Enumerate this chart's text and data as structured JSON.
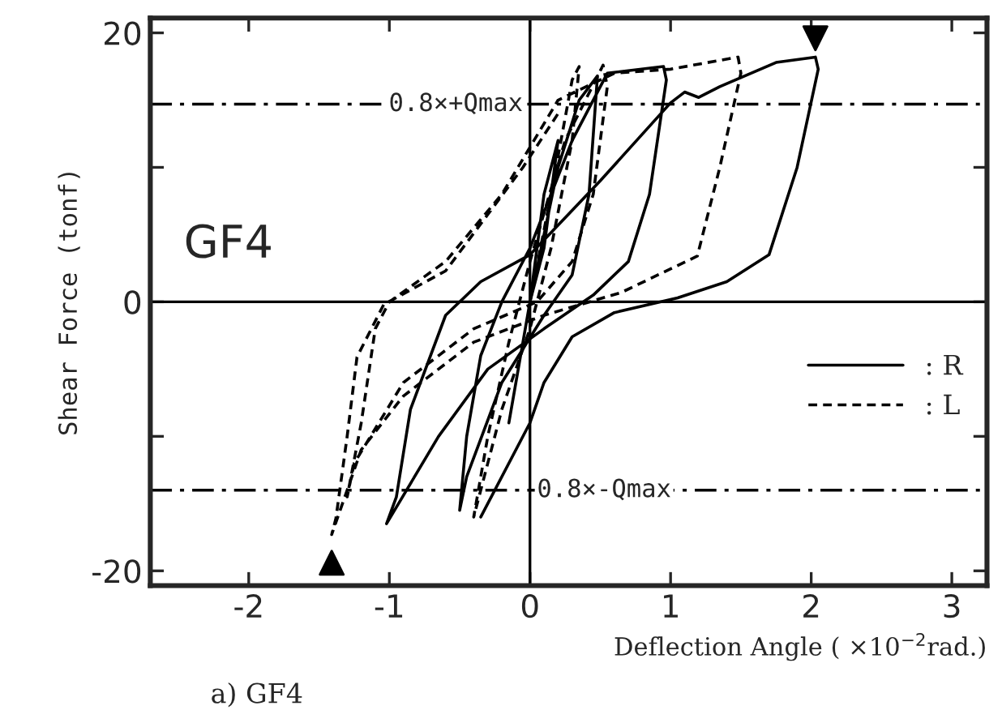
{
  "chart_data": {
    "type": "line",
    "xlabel": "Deflection Angle ( ×10$^{−2}$rad.)",
    "ylabel": "Shear Force (tonf)",
    "xlim": [
      -2.7,
      3.25
    ],
    "ylim": [
      -21.1,
      21.1
    ],
    "xticks": [
      -2,
      -1,
      0,
      1,
      2,
      3
    ],
    "yticks": [
      -20,
      {
        "value": -10,
        "label": null
      },
      0,
      {
        "value": 10,
        "label": null
      },
      20
    ],
    "grid": false,
    "legend": "right",
    "series": [
      {
        "name": ": R",
        "color": "#000000",
        "line_style": "solid",
        "x": [
          0,
          0.1,
          0.2,
          0.1,
          0,
          -0.1,
          -0.15,
          -0.05,
          0,
          0.2,
          0.35,
          0.48,
          0.42,
          0.3,
          0.1,
          -0.2,
          -0.45,
          -0.5,
          -0.45,
          -0.35,
          -0.2,
          0,
          0.3,
          0.55,
          0.95,
          0.97,
          0.85,
          0.7,
          0.45,
          0.1,
          -0.3,
          -0.65,
          -1.02,
          -0.95,
          -0.85,
          -0.6,
          -0.35,
          0,
          0.5,
          1.0,
          1.1,
          1.2,
          1.35,
          1.75,
          2.03,
          2.05,
          1.9,
          1.7,
          1.4,
          1.05,
          0.6,
          0.3,
          0.1,
          0,
          -0.35
        ],
        "values": [
          0,
          8,
          12,
          4,
          0,
          -6,
          -9,
          -3,
          0,
          10,
          15,
          16.8,
          8,
          2,
          -1,
          -6,
          -13,
          -15.5,
          -10,
          -4,
          0,
          4,
          12,
          17,
          17.5,
          16.5,
          8,
          3,
          0.5,
          -2,
          -5,
          -10,
          -16.5,
          -14.5,
          -8,
          -1,
          1.5,
          3.5,
          9,
          14.8,
          15.6,
          15.2,
          16,
          17.8,
          18.2,
          17.3,
          10,
          3.5,
          1.5,
          0.3,
          -0.8,
          -2.6,
          -6,
          -9,
          -16
        ]
      },
      {
        "name": ": L",
        "color": "#000000",
        "line_style": "dashed",
        "x": [
          0,
          0.15,
          0.3,
          0.35,
          0.3,
          0.15,
          0,
          -0.2,
          -0.35,
          -0.4,
          -0.3,
          -0.15,
          0,
          0.25,
          0.52,
          0.55,
          0.45,
          0.3,
          0.05,
          -0.4,
          -0.9,
          -1.25,
          -1.3,
          -1.2,
          -1.1,
          -1.0,
          -0.6,
          -0.2,
          0.2,
          0.6,
          1.0,
          1.48,
          1.5,
          1.35,
          1.19,
          0.65,
          0.1,
          -0.4,
          -0.9,
          -1.2,
          -1.41,
          -1.38,
          -1.3,
          -1.23,
          -1.04,
          -0.6,
          -0.05,
          0.2
        ],
        "values": [
          0,
          8,
          16.5,
          17.5,
          12,
          4,
          -2,
          -8,
          -14,
          -16,
          -10,
          -3,
          3,
          12,
          17.6,
          16,
          8,
          3,
          0,
          -2,
          -6,
          -12,
          -14.5,
          -9,
          -2,
          0,
          3,
          8,
          15,
          17,
          17.3,
          18.2,
          17,
          10,
          3.4,
          0.7,
          -1,
          -3,
          -7,
          -11,
          -17.3,
          -16.1,
          -10,
          -4.1,
          -0.2,
          2.3,
          10,
          14
        ]
      },
      {
        "type": "scatter",
        "marker": "triangle",
        "color": "#000000",
        "x": [
          2.03,
          -1.41
        ],
        "values": [
          19.6,
          -19.4
        ]
      }
    ],
    "ref_lines": [
      {
        "axis": "x",
        "value": 0,
        "line_style": "solid"
      },
      {
        "axis": "y",
        "value": 0,
        "line_style": "solid"
      },
      {
        "axis": "y",
        "value": 14.7,
        "label": "0.8×+Qmax",
        "line_style": "dashdot"
      },
      {
        "axis": "y",
        "value": -14.0,
        "label": "0.8×-Qmax",
        "line_style": "dashdot"
      }
    ],
    "annotations": [
      "GF4",
      "a) GF4"
    ]
  }
}
